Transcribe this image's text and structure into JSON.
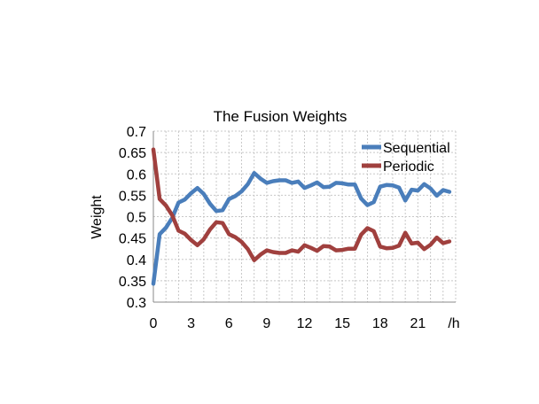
{
  "chart_data": {
    "type": "line",
    "title": "The Fusion Weights",
    "xlabel": "/h",
    "ylabel": "Weight",
    "xlim": [
      0,
      24
    ],
    "ylim": [
      0.3,
      0.7
    ],
    "x_ticks": [
      0,
      3,
      6,
      9,
      12,
      15,
      18,
      21
    ],
    "x_tick_labels": [
      "0",
      "3",
      "6",
      "9",
      "12",
      "15",
      "18",
      "21"
    ],
    "y_ticks": [
      0.3,
      0.35,
      0.4,
      0.45,
      0.5,
      0.55,
      0.6,
      0.65,
      0.7
    ],
    "y_tick_labels": [
      "0.3",
      "0.35",
      "0.4",
      "0.45",
      "0.5",
      "0.55",
      "0.6",
      "0.65",
      "0.7"
    ],
    "grid": true,
    "legend": "top-right",
    "x": [
      0,
      0.5,
      1,
      1.5,
      2,
      2.5,
      3,
      3.5,
      4,
      4.5,
      5,
      5.5,
      6,
      6.5,
      7,
      7.5,
      8,
      8.5,
      9,
      9.5,
      10,
      10.5,
      11,
      11.5,
      12,
      12.5,
      13,
      13.5,
      14,
      14.5,
      15,
      15.5,
      16,
      16.5,
      17,
      17.5,
      18,
      18.5,
      19,
      19.5,
      20,
      20.5,
      21,
      21.5,
      22,
      22.5,
      23,
      23.5
    ],
    "series": [
      {
        "name": "Sequential",
        "color": "#4a7ebb",
        "values": [
          0.343,
          0.459,
          0.474,
          0.497,
          0.533,
          0.54,
          0.555,
          0.567,
          0.553,
          0.53,
          0.513,
          0.515,
          0.541,
          0.548,
          0.559,
          0.576,
          0.602,
          0.589,
          0.579,
          0.583,
          0.585,
          0.585,
          0.579,
          0.582,
          0.567,
          0.573,
          0.58,
          0.569,
          0.57,
          0.579,
          0.578,
          0.575,
          0.575,
          0.542,
          0.527,
          0.534,
          0.57,
          0.574,
          0.573,
          0.568,
          0.538,
          0.563,
          0.561,
          0.576,
          0.566,
          0.549,
          0.562,
          0.558
        ]
      },
      {
        "name": "Periodic",
        "color": "#a0403e",
        "values": [
          0.657,
          0.541,
          0.526,
          0.503,
          0.467,
          0.46,
          0.445,
          0.433,
          0.447,
          0.47,
          0.487,
          0.485,
          0.459,
          0.452,
          0.441,
          0.424,
          0.398,
          0.411,
          0.421,
          0.417,
          0.415,
          0.415,
          0.421,
          0.418,
          0.433,
          0.427,
          0.42,
          0.431,
          0.43,
          0.421,
          0.422,
          0.425,
          0.425,
          0.458,
          0.473,
          0.466,
          0.43,
          0.426,
          0.427,
          0.432,
          0.462,
          0.437,
          0.439,
          0.424,
          0.434,
          0.451,
          0.438,
          0.442
        ]
      }
    ]
  }
}
